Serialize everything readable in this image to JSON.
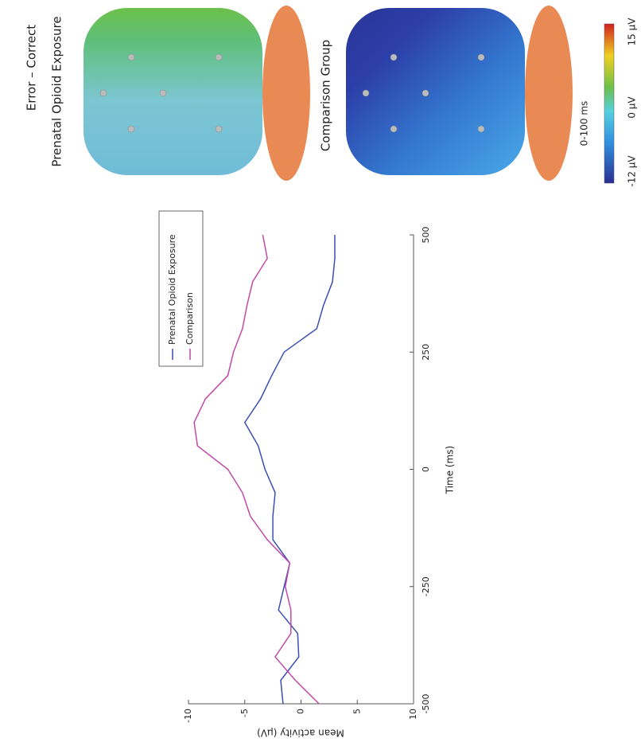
{
  "chart_data": {
    "type": "line",
    "x_label": "Time (ms)",
    "y_label": "Mean activity (µV)",
    "x": [
      -500,
      -450,
      -400,
      -350,
      -300,
      -250,
      -200,
      -150,
      -100,
      -50,
      0,
      50,
      100,
      150,
      200,
      250,
      300,
      350,
      400,
      450,
      500
    ],
    "series": [
      {
        "name": "Prenatal Opioid Exposure",
        "color": "#3b4fb3",
        "values": [
          -1.6,
          -1.8,
          -0.2,
          -0.3,
          -2.0,
          -1.5,
          -1.0,
          -2.5,
          -2.5,
          -2.3,
          -3.2,
          -3.8,
          -5.0,
          -3.6,
          -2.6,
          -1.5,
          1.4,
          2.0,
          2.8,
          3.0,
          3.0
        ]
      },
      {
        "name": "Comparison",
        "color": "#c04aa8",
        "values": [
          1.6,
          -0.5,
          -2.3,
          -0.9,
          -0.9,
          -1.4,
          -1.0,
          -3.0,
          -4.5,
          -5.2,
          -6.5,
          -9.2,
          -9.5,
          -8.5,
          -6.5,
          -6.0,
          -5.2,
          -4.8,
          -4.3,
          -3.0,
          -3.4
        ]
      }
    ],
    "xlim": [
      -500,
      500
    ],
    "xticks": [
      -500,
      -250,
      0,
      250,
      500
    ],
    "ylim": [
      -10,
      10
    ],
    "yticks": [
      -10,
      -5,
      0,
      5,
      10
    ],
    "y_inverted": true,
    "legend": "upper right"
  },
  "topomaps": {
    "title": "Error – Correct",
    "window": "0-100 ms",
    "panels": [
      "Prenatal Opioid Exposure",
      "Comparison Group"
    ],
    "colorbar": {
      "max_label": "15 µV",
      "mid_label": "0 µV",
      "min_label": "-12 µV"
    }
  }
}
